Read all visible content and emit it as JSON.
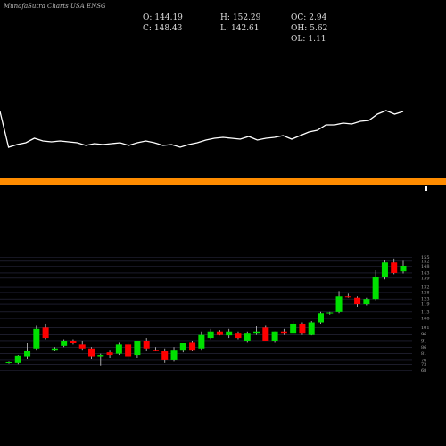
{
  "header": {
    "title": "MunafaSutra Charts USA ENSG",
    "ohlc": [
      {
        "label": "O:",
        "value": 144.19
      },
      {
        "label": "H:",
        "value": 152.29
      },
      {
        "label": "OC:",
        "value": 2.94
      },
      {
        "label": "C:",
        "value": 148.43
      },
      {
        "label": "L:",
        "value": 142.61
      },
      {
        "label": "OH:",
        "value": 5.62
      },
      {
        "label": "OL:",
        "value": 1.11
      }
    ]
  },
  "chart_data": [
    {
      "type": "line",
      "color": "#ffffff",
      "ylim": [
        0,
        130
      ],
      "values": [
        75,
        35,
        38,
        40,
        45,
        42,
        41,
        42,
        41,
        40,
        37,
        39,
        38,
        39,
        40,
        37,
        40,
        42,
        40,
        37,
        38,
        35,
        38,
        40,
        43,
        45,
        46,
        45,
        44,
        47,
        43,
        45,
        46,
        48,
        44,
        48,
        52,
        54,
        60,
        60,
        62,
        61,
        64,
        65,
        72,
        76,
        72,
        75
      ]
    },
    {
      "type": "candlestick",
      "up_color": "#00e000",
      "down_color": "#ff0000",
      "grid": true,
      "ylim": [
        65,
        158
      ],
      "yticks": [
        68,
        73,
        76,
        81,
        86,
        91,
        96,
        101,
        108,
        113,
        119,
        123,
        128,
        132,
        139,
        143,
        148,
        152,
        155
      ],
      "open": [
        74.2,
        74,
        79,
        85,
        101,
        84,
        87,
        91,
        88,
        85,
        79,
        82,
        81,
        88,
        80,
        91,
        84,
        83,
        76,
        84,
        90,
        85,
        93,
        98,
        95,
        97,
        91,
        97,
        101,
        91,
        98,
        97,
        104,
        96,
        105,
        112,
        113,
        125,
        124,
        119,
        123,
        140,
        151,
        144.19
      ],
      "high": [
        75,
        80,
        89,
        103,
        104,
        86,
        92,
        92,
        91,
        86,
        81,
        84,
        90,
        90,
        91,
        93,
        86,
        85,
        86,
        89,
        91,
        98,
        100,
        99,
        100,
        98,
        98,
        102,
        103,
        98,
        100,
        106,
        105,
        106,
        113,
        113,
        129,
        127,
        125,
        124,
        145,
        153,
        154,
        152.29
      ],
      "low": [
        73.5,
        73,
        77,
        84,
        92,
        83,
        86,
        88,
        84,
        77,
        72,
        78,
        80,
        76,
        78,
        83,
        83,
        74,
        75,
        82,
        83,
        84,
        92,
        95,
        93,
        92,
        90,
        96,
        91,
        90,
        96,
        97,
        96,
        95,
        104,
        111,
        112,
        124,
        117,
        118,
        122,
        138,
        142,
        142.61
      ],
      "close": [
        74.6,
        79.5,
        83.5,
        100,
        93,
        85,
        91,
        89,
        85,
        79,
        80,
        80,
        88,
        79,
        91,
        85,
        83.5,
        76,
        84,
        89,
        84,
        96,
        98,
        96,
        98,
        93,
        97,
        98,
        91,
        98,
        97,
        104,
        97,
        105,
        112,
        112.5,
        125,
        124.5,
        119,
        123,
        140,
        151,
        143,
        148.43
      ]
    }
  ]
}
